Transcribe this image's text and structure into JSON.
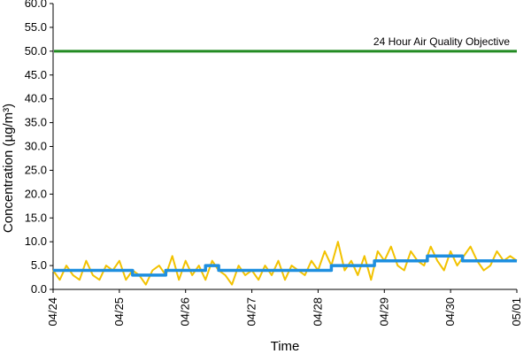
{
  "chart_data": {
    "type": "line",
    "title": "",
    "xlabel": "Time",
    "ylabel": "Concentration (µg/m³)",
    "ylim": [
      0,
      60
    ],
    "yticks": [
      "0.0",
      "5.0",
      "10.0",
      "15.0",
      "20.0",
      "25.0",
      "30.0",
      "35.0",
      "40.0",
      "45.0",
      "50.0",
      "55.0",
      "60.0"
    ],
    "xlim": [
      "04/24",
      "05/01"
    ],
    "xticks": [
      "04/24",
      "04/25",
      "04/26",
      "04/27",
      "04/28",
      "04/29",
      "04/30",
      "05/01"
    ],
    "grid": false,
    "legend": "none",
    "objective": {
      "label": "24 Hour Air Quality Objective",
      "value": 50,
      "color": "#228b22"
    },
    "series": [
      {
        "role": "hourly",
        "color": "#f2c200",
        "x": [
          0,
          0.1,
          0.2,
          0.3,
          0.4,
          0.5,
          0.6,
          0.7,
          0.8,
          0.9,
          1,
          1.1,
          1.2,
          1.3,
          1.4,
          1.5,
          1.6,
          1.7,
          1.8,
          1.9,
          2,
          2.1,
          2.2,
          2.3,
          2.4,
          2.5,
          2.6,
          2.7,
          2.8,
          2.9,
          3,
          3.1,
          3.2,
          3.3,
          3.4,
          3.5,
          3.6,
          3.7,
          3.8,
          3.9,
          4,
          4.1,
          4.2,
          4.3,
          4.4,
          4.5,
          4.6,
          4.7,
          4.8,
          4.9,
          5,
          5.1,
          5.2,
          5.3,
          5.4,
          5.5,
          5.6,
          5.7,
          5.8,
          5.9,
          6,
          6.1,
          6.2,
          6.3,
          6.4,
          6.5,
          6.6,
          6.7,
          6.8,
          6.9,
          7
        ],
        "y": [
          4,
          2,
          5,
          3,
          2,
          6,
          3,
          2,
          5,
          4,
          6,
          2,
          4,
          3,
          1,
          4,
          5,
          3,
          7,
          2,
          6,
          3,
          5,
          2,
          6,
          4,
          3,
          1,
          5,
          3,
          4,
          2,
          5,
          3,
          6,
          2,
          5,
          4,
          3,
          6,
          4,
          8,
          5,
          10,
          4,
          6,
          3,
          7,
          2,
          8,
          6,
          9,
          5,
          4,
          8,
          6,
          5,
          9,
          6,
          4,
          8,
          5,
          7,
          9,
          6,
          4,
          5,
          8,
          6,
          7,
          6
        ]
      },
      {
        "role": "rolling-24h",
        "color": "#1e8fe0",
        "x": [
          0,
          1.2,
          1.2,
          1.7,
          1.7,
          2.3,
          2.3,
          2.5,
          2.5,
          4.2,
          4.2,
          4.85,
          4.85,
          5.3,
          5.3,
          5.65,
          5.65,
          5.8,
          5.8,
          6.18,
          6.18,
          6.65,
          6.65,
          7
        ],
        "y": [
          4,
          4,
          3,
          3,
          4,
          4,
          5,
          5,
          4,
          4,
          5,
          5,
          6,
          6,
          6,
          6,
          7,
          7,
          7,
          7,
          6,
          6,
          6,
          6
        ]
      }
    ]
  }
}
